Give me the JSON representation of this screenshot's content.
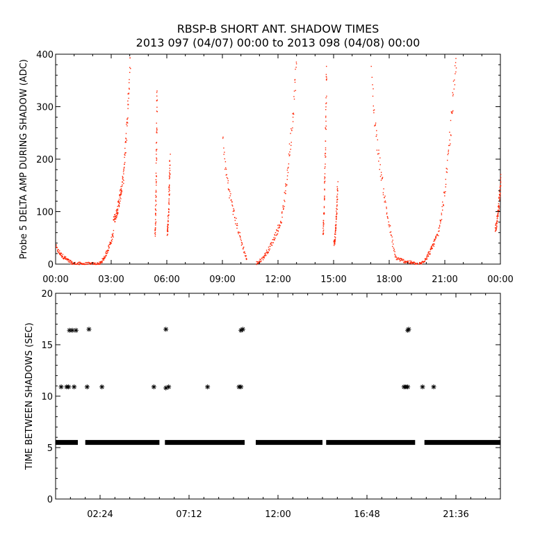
{
  "chart_data": [
    {
      "type": "scatter",
      "title": "RBSP-B SHORT ANT. SHADOW TIMES",
      "subtitle": "2013 097 (04/07) 00:00 to 2013 098 (04/08) 00:00",
      "xlabel": "",
      "ylabel": "Probe 5 DELTA AMP DURING SHADOW (ADC)",
      "xlim": [
        0,
        24
      ],
      "ylim": [
        0,
        400
      ],
      "x_tick_values": [
        0,
        3,
        6,
        9,
        12,
        15,
        18,
        21,
        24
      ],
      "x_tick_labels": [
        "00:00",
        "03:00",
        "06:00",
        "09:00",
        "12:00",
        "15:00",
        "18:00",
        "21:00",
        "00:00"
      ],
      "y_ticks": [
        0,
        100,
        200,
        300,
        400
      ],
      "marker_color": "#ff2200",
      "grid": false,
      "segments": [
        {
          "x0": 0.0,
          "x1": 0.9,
          "y0": 35,
          "y1": 2
        },
        {
          "x0": 0.9,
          "x1": 2.3,
          "y0": 2,
          "y1": 1
        },
        {
          "x0": 2.3,
          "x1": 3.1,
          "y0": 1,
          "y1": 60
        },
        {
          "x0": 3.1,
          "x1": 3.5,
          "y0": 85,
          "y1": 140
        },
        {
          "x0": 3.5,
          "x1": 4.0,
          "y0": 140,
          "y1": 400
        },
        {
          "x0": 5.35,
          "x1": 5.45,
          "y0": 60,
          "y1": 340
        },
        {
          "x0": 6.0,
          "x1": 6.15,
          "y0": 60,
          "y1": 200
        },
        {
          "x0": 9.0,
          "x1": 10.3,
          "y0": 250,
          "y1": 8
        },
        {
          "x0": 10.8,
          "x1": 12.0,
          "y0": 3,
          "y1": 70
        },
        {
          "x0": 12.0,
          "x1": 13.0,
          "y0": 70,
          "y1": 400
        },
        {
          "x0": 14.4,
          "x1": 14.6,
          "y0": 60,
          "y1": 380
        },
        {
          "x0": 15.0,
          "x1": 15.2,
          "y0": 40,
          "y1": 150
        },
        {
          "x0": 17.0,
          "x1": 18.3,
          "y0": 400,
          "y1": 15
        },
        {
          "x0": 18.3,
          "x1": 19.5,
          "y0": 15,
          "y1": 1
        },
        {
          "x0": 19.6,
          "x1": 20.5,
          "y0": 1,
          "y1": 50
        },
        {
          "x0": 20.5,
          "x1": 21.6,
          "y0": 50,
          "y1": 400
        },
        {
          "x0": 23.7,
          "x1": 24.0,
          "y0": 70,
          "y1": 160
        }
      ]
    },
    {
      "type": "scatter",
      "title": "",
      "xlabel": "",
      "ylabel": "TIME BETWEEN SHADOWS (SEC)",
      "xlim": [
        0,
        24
      ],
      "ylim": [
        0,
        20
      ],
      "x_tick_values": [
        2.4,
        7.2,
        12.0,
        16.8,
        21.6
      ],
      "x_tick_labels": [
        "02:24",
        "07:12",
        "12:00",
        "16:48",
        "21:36"
      ],
      "y_ticks": [
        0,
        5,
        10,
        15,
        20
      ],
      "marker": "asterisk",
      "marker_color": "#000000",
      "grid": false,
      "baseline_value": 5.5,
      "baseline_ranges": [
        [
          0.0,
          1.2
        ],
        [
          1.6,
          5.6
        ],
        [
          5.9,
          10.2
        ],
        [
          10.8,
          14.4
        ],
        [
          14.6,
          19.4
        ],
        [
          19.9,
          24.0
        ]
      ],
      "points": [
        {
          "x": 0.3,
          "y": 10.9
        },
        {
          "x": 0.6,
          "y": 10.9
        },
        {
          "x": 0.7,
          "y": 10.9
        },
        {
          "x": 0.75,
          "y": 16.4
        },
        {
          "x": 0.9,
          "y": 16.4
        },
        {
          "x": 1.0,
          "y": 10.9
        },
        {
          "x": 1.1,
          "y": 16.4
        },
        {
          "x": 1.7,
          "y": 10.9
        },
        {
          "x": 1.8,
          "y": 16.5
        },
        {
          "x": 2.5,
          "y": 10.9
        },
        {
          "x": 5.3,
          "y": 10.9
        },
        {
          "x": 5.95,
          "y": 16.5
        },
        {
          "x": 5.95,
          "y": 10.8
        },
        {
          "x": 6.1,
          "y": 10.9
        },
        {
          "x": 8.2,
          "y": 10.9
        },
        {
          "x": 9.9,
          "y": 10.9
        },
        {
          "x": 10.0,
          "y": 10.9
        },
        {
          "x": 10.0,
          "y": 16.4
        },
        {
          "x": 10.1,
          "y": 16.5
        },
        {
          "x": 18.8,
          "y": 10.9
        },
        {
          "x": 18.9,
          "y": 10.9
        },
        {
          "x": 19.0,
          "y": 10.9
        },
        {
          "x": 19.0,
          "y": 16.4
        },
        {
          "x": 19.05,
          "y": 16.5
        },
        {
          "x": 19.8,
          "y": 10.9
        },
        {
          "x": 20.4,
          "y": 10.9
        }
      ]
    }
  ]
}
